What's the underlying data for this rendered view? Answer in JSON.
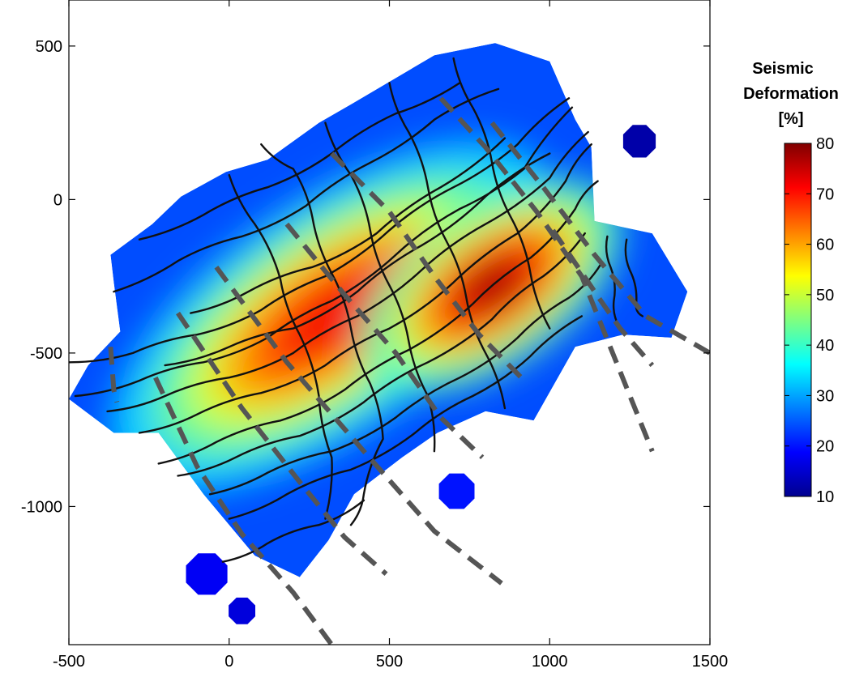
{
  "chart_data": {
    "type": "heatmap",
    "title": "",
    "xlabel": "",
    "ylabel": "",
    "xlim": [
      -500,
      1500
    ],
    "ylim": [
      -1450,
      650
    ],
    "xticks": [
      -500,
      0,
      500,
      1000,
      1500
    ],
    "yticks": [
      500,
      0,
      -500,
      -1000
    ],
    "xtick_labels": [
      "-500",
      "0",
      "500",
      "1000",
      "1500"
    ],
    "ytick_labels": [
      "500",
      "0",
      "-500",
      "-1000"
    ],
    "grid": false,
    "colorbar": {
      "title_lines": [
        "Seismic",
        "Deformation",
        "[%]"
      ],
      "range": [
        10,
        80
      ],
      "ticks": [
        80,
        70,
        60,
        50,
        40,
        30,
        20,
        10
      ],
      "tick_labels": [
        "80",
        "70",
        "60",
        "50",
        "40",
        "30",
        "20",
        "10"
      ],
      "colormap": "jet",
      "position": "right"
    },
    "region_outline": [
      [
        -500,
        -650
      ],
      [
        -440,
        -540
      ],
      [
        -340,
        -430
      ],
      [
        -360,
        -270
      ],
      [
        -370,
        -180
      ],
      [
        -240,
        -80
      ],
      [
        -150,
        10
      ],
      [
        -10,
        90
      ],
      [
        120,
        130
      ],
      [
        280,
        250
      ],
      [
        380,
        310
      ],
      [
        640,
        470
      ],
      [
        830,
        510
      ],
      [
        1000,
        450
      ],
      [
        1080,
        260
      ],
      [
        1130,
        170
      ],
      [
        1140,
        -70
      ],
      [
        1320,
        -110
      ],
      [
        1430,
        -300
      ],
      [
        1380,
        -450
      ],
      [
        1230,
        -440
      ],
      [
        1080,
        -480
      ],
      [
        950,
        -720
      ],
      [
        800,
        -690
      ],
      [
        650,
        -760
      ],
      [
        540,
        -840
      ],
      [
        390,
        -960
      ],
      [
        310,
        -1110
      ],
      [
        220,
        -1230
      ],
      [
        80,
        -1160
      ],
      [
        -80,
        -960
      ],
      [
        -220,
        -760
      ],
      [
        -360,
        -760
      ]
    ],
    "islands": [
      {
        "center": [
          1280,
          190
        ],
        "radius": 55,
        "value": 12
      },
      {
        "center": [
          710,
          -950
        ],
        "radius": 60,
        "value": 20
      },
      {
        "center": [
          -70,
          -1220
        ],
        "radius": 70,
        "value": 18
      },
      {
        "center": [
          40,
          -1340
        ],
        "radius": 45,
        "value": 16
      }
    ],
    "high_deformation_core": [
      {
        "center": [
          320,
          -380
        ],
        "radius_x": 520,
        "radius_y": 230,
        "rotation_deg": -35,
        "peak": 72
      },
      {
        "center": [
          820,
          -280
        ],
        "radius_x": 300,
        "radius_y": 160,
        "rotation_deg": -35,
        "peak": 78
      }
    ],
    "contour_lines": [
      [
        [
          -500,
          -530
        ],
        [
          -300,
          -500
        ],
        [
          -100,
          -440
        ],
        [
          100,
          -360
        ],
        [
          300,
          -250
        ],
        [
          500,
          -100
        ],
        [
          700,
          40
        ],
        [
          900,
          180
        ],
        [
          1060,
          330
        ]
      ],
      [
        [
          -480,
          -640
        ],
        [
          -280,
          -590
        ],
        [
          -80,
          -530
        ],
        [
          120,
          -450
        ],
        [
          320,
          -330
        ],
        [
          520,
          -180
        ],
        [
          720,
          -30
        ],
        [
          920,
          100
        ],
        [
          1070,
          300
        ]
      ],
      [
        [
          -380,
          -690
        ],
        [
          -200,
          -640
        ],
        [
          0,
          -580
        ],
        [
          200,
          -500
        ],
        [
          400,
          -380
        ],
        [
          600,
          -230
        ],
        [
          800,
          -80
        ],
        [
          1000,
          70
        ],
        [
          1120,
          220
        ]
      ],
      [
        [
          -280,
          -760
        ],
        [
          -100,
          -700
        ],
        [
          100,
          -630
        ],
        [
          300,
          -540
        ],
        [
          500,
          -420
        ],
        [
          700,
          -270
        ],
        [
          900,
          -110
        ],
        [
          1050,
          60
        ],
        [
          1130,
          180
        ]
      ],
      [
        [
          -220,
          -860
        ],
        [
          -40,
          -790
        ],
        [
          160,
          -720
        ],
        [
          360,
          -620
        ],
        [
          560,
          -490
        ],
        [
          760,
          -340
        ],
        [
          940,
          -190
        ],
        [
          1080,
          -30
        ],
        [
          1150,
          60
        ]
      ],
      [
        [
          -160,
          -900
        ],
        [
          20,
          -840
        ],
        [
          220,
          -770
        ],
        [
          420,
          -660
        ],
        [
          620,
          -530
        ],
        [
          820,
          -390
        ],
        [
          980,
          -250
        ],
        [
          1110,
          -110
        ]
      ],
      [
        [
          -60,
          -960
        ],
        [
          120,
          -890
        ],
        [
          320,
          -820
        ],
        [
          520,
          -710
        ],
        [
          720,
          -580
        ],
        [
          900,
          -450
        ],
        [
          1060,
          -320
        ],
        [
          1160,
          -210
        ]
      ],
      [
        [
          0,
          -1040
        ],
        [
          180,
          -960
        ],
        [
          380,
          -880
        ],
        [
          580,
          -760
        ],
        [
          760,
          -640
        ],
        [
          940,
          -510
        ],
        [
          1100,
          -380
        ]
      ],
      [
        [
          -20,
          -1180
        ],
        [
          120,
          -1120
        ],
        [
          280,
          -1060
        ],
        [
          420,
          -980
        ]
      ],
      [
        [
          -200,
          -540
        ],
        [
          0,
          -480
        ],
        [
          200,
          -420
        ],
        [
          400,
          -300
        ],
        [
          600,
          -150
        ],
        [
          800,
          10
        ],
        [
          1000,
          150
        ]
      ],
      [
        [
          -120,
          -370
        ],
        [
          60,
          -300
        ],
        [
          260,
          -220
        ],
        [
          460,
          -110
        ],
        [
          660,
          40
        ],
        [
          860,
          200
        ]
      ],
      [
        [
          -360,
          -300
        ],
        [
          -160,
          -200
        ],
        [
          40,
          -120
        ],
        [
          240,
          -20
        ],
        [
          440,
          120
        ],
        [
          640,
          260
        ],
        [
          840,
          360
        ]
      ],
      [
        [
          -280,
          -130
        ],
        [
          -80,
          -50
        ],
        [
          120,
          40
        ],
        [
          320,
          150
        ],
        [
          520,
          280
        ],
        [
          720,
          380
        ]
      ],
      [
        [
          100,
          180
        ],
        [
          200,
          100
        ],
        [
          260,
          -60
        ],
        [
          320,
          -240
        ],
        [
          380,
          -420
        ],
        [
          440,
          -600
        ],
        [
          480,
          -780
        ],
        [
          420,
          -960
        ],
        [
          380,
          -1060
        ]
      ],
      [
        [
          0,
          80
        ],
        [
          80,
          -80
        ],
        [
          160,
          -260
        ],
        [
          220,
          -440
        ],
        [
          280,
          -640
        ],
        [
          320,
          -840
        ],
        [
          300,
          -1040
        ]
      ],
      [
        [
          300,
          250
        ],
        [
          380,
          80
        ],
        [
          440,
          -100
        ],
        [
          500,
          -280
        ],
        [
          560,
          -460
        ],
        [
          620,
          -640
        ],
        [
          640,
          -820
        ]
      ],
      [
        [
          500,
          380
        ],
        [
          560,
          220
        ],
        [
          620,
          40
        ],
        [
          680,
          -140
        ],
        [
          740,
          -320
        ],
        [
          800,
          -500
        ],
        [
          860,
          -680
        ]
      ],
      [
        [
          700,
          460
        ],
        [
          760,
          300
        ],
        [
          820,
          120
        ],
        [
          880,
          -60
        ],
        [
          940,
          -240
        ],
        [
          1000,
          -420
        ]
      ],
      [
        [
          1240,
          -130
        ],
        [
          1250,
          -230
        ],
        [
          1270,
          -340
        ],
        [
          1290,
          -380
        ]
      ],
      [
        [
          1180,
          -120
        ],
        [
          1190,
          -220
        ],
        [
          1200,
          -330
        ],
        [
          1220,
          -420
        ]
      ]
    ],
    "profile_lines": [
      [
        [
          -370,
          -480
        ],
        [
          -360,
          -620
        ],
        [
          -350,
          -660
        ]
      ],
      [
        [
          -230,
          -580
        ],
        [
          -100,
          -870
        ],
        [
          40,
          -1090
        ],
        [
          200,
          -1280
        ],
        [
          320,
          -1450
        ]
      ],
      [
        [
          -160,
          -370
        ],
        [
          40,
          -680
        ],
        [
          220,
          -920
        ],
        [
          360,
          -1100
        ],
        [
          490,
          -1220
        ]
      ],
      [
        [
          -40,
          -220
        ],
        [
          180,
          -530
        ],
        [
          420,
          -820
        ],
        [
          640,
          -1080
        ],
        [
          850,
          -1250
        ]
      ],
      [
        [
          180,
          -80
        ],
        [
          360,
          -310
        ],
        [
          520,
          -500
        ],
        [
          660,
          -710
        ],
        [
          790,
          -840
        ]
      ],
      [
        [
          320,
          150
        ],
        [
          500,
          -40
        ],
        [
          640,
          -250
        ],
        [
          780,
          -440
        ],
        [
          930,
          -600
        ]
      ],
      [
        [
          660,
          330
        ],
        [
          800,
          170
        ],
        [
          960,
          -40
        ],
        [
          1100,
          -250
        ],
        [
          1320,
          -820
        ]
      ],
      [
        [
          820,
          250
        ],
        [
          980,
          40
        ],
        [
          1140,
          -180
        ],
        [
          1300,
          -380
        ],
        [
          1500,
          -500
        ]
      ],
      [
        [
          1010,
          -100
        ],
        [
          1160,
          -330
        ],
        [
          1220,
          -420
        ],
        [
          1320,
          -540
        ]
      ]
    ]
  }
}
